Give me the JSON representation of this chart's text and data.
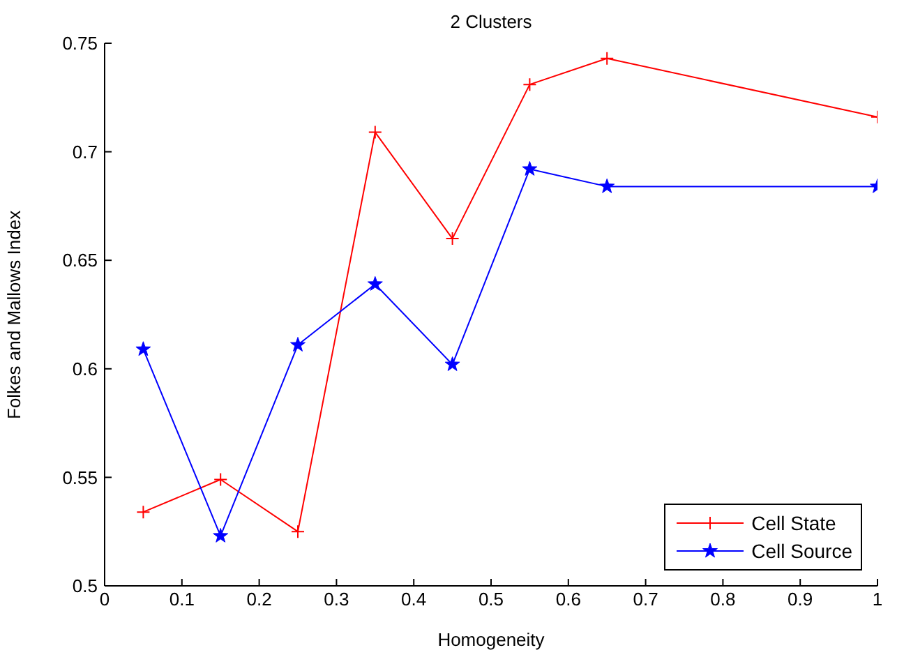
{
  "chart_data": {
    "type": "line",
    "title": "2 Clusters",
    "xlabel": "Homogeneity",
    "ylabel": "Folkes and Mallows Index",
    "x": [
      0.05,
      0.15,
      0.25,
      0.35,
      0.45,
      0.55,
      0.65,
      1.0
    ],
    "series": [
      {
        "name": "Cell State",
        "color": "#ff0000",
        "marker": "cross",
        "values": [
          0.534,
          0.549,
          0.525,
          0.709,
          0.66,
          0.731,
          0.743,
          0.716
        ]
      },
      {
        "name": "Cell Source",
        "color": "#0000ff",
        "marker": "star",
        "values": [
          0.609,
          0.523,
          0.611,
          0.639,
          0.602,
          0.692,
          0.684,
          0.684
        ]
      }
    ],
    "xlim": [
      0,
      1
    ],
    "xticks": [
      0,
      0.1,
      0.2,
      0.3,
      0.4,
      0.5,
      0.6,
      0.7,
      0.8,
      0.9,
      1
    ],
    "ylim": [
      0.5,
      0.75
    ],
    "yticks": [
      0.5,
      0.55,
      0.6,
      0.65,
      0.7,
      0.75
    ],
    "grid": false,
    "legend": "bottom right",
    "line_style": "solid"
  }
}
